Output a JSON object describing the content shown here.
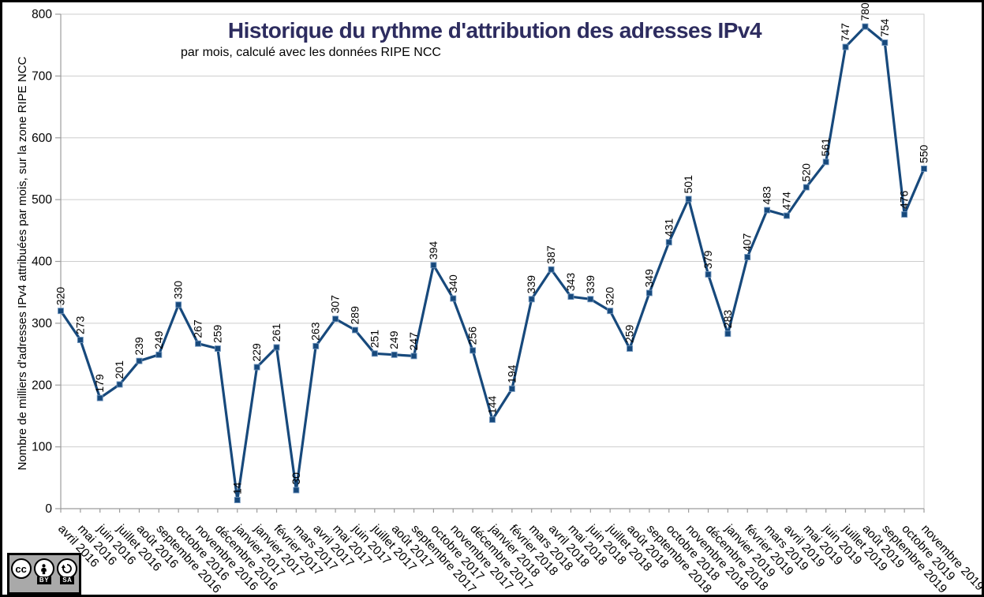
{
  "chart_data": {
    "type": "line",
    "title": "Historique du rythme d'attribution des adresses IPv4",
    "subtitle": "par mois, calculé avec les données RIPE NCC",
    "xlabel": "",
    "ylabel": "Nombre de milliers d'adresses IPv4 attribuées par mois, sur la zone RIPE NCC",
    "categories": [
      "avril 2016",
      "mai 2016",
      "juin 2016",
      "juillet 2016",
      "août 2016",
      "septembre 2016",
      "octobre 2016",
      "novembre 2016",
      "décembre 2016",
      "janvier 2017",
      "janvier 2017",
      "février 2017",
      "mars 2017",
      "avril 2017",
      "mai 2017",
      "juin 2017",
      "juillet 2017",
      "août 2017",
      "septembre 2017",
      "octobre 2017",
      "novembre 2017",
      "décembre 2017",
      "janvier 2018",
      "février 2018",
      "mars 2018",
      "avril 2018",
      "mai 2018",
      "juin 2018",
      "juillet 2018",
      "août 2018",
      "septembre 2018",
      "octobre 2018",
      "novembre 2018",
      "décembre 2018",
      "janvier 2019",
      "février 2019",
      "mars 2019",
      "avril 2019",
      "mai 2019",
      "juin 2019",
      "juillet 2019",
      "août 2019",
      "septembre 2019",
      "octobre 2019",
      "novembre 2019"
    ],
    "values": [
      320,
      273,
      179,
      201,
      239,
      249,
      330,
      267,
      259,
      14,
      229,
      261,
      30,
      263,
      307,
      289,
      251,
      249,
      247,
      394,
      340,
      256,
      144,
      194,
      339,
      387,
      343,
      339,
      320,
      259,
      349,
      431,
      501,
      379,
      283,
      407,
      483,
      474,
      520,
      561,
      747,
      780,
      754,
      476,
      550
    ],
    "ylim": [
      0,
      800
    ],
    "yticks": [
      0,
      100,
      200,
      300,
      400,
      500,
      600,
      700,
      800
    ],
    "grid": true,
    "legend": "none",
    "marker": "square",
    "point_labels_shown": true,
    "x_label_rotation_deg": 47
  },
  "colors": {
    "series": "#17497C",
    "marker_edge": "#6F94BC",
    "grid": "#CDCDCD",
    "axis": "#9C9C9C",
    "title": "#2D2C5F",
    "text": "#000000",
    "badge_bg": "#A9A9A9"
  },
  "badge": {
    "cc_text": "cc",
    "by_label": "BY",
    "sa_label": "SA"
  }
}
